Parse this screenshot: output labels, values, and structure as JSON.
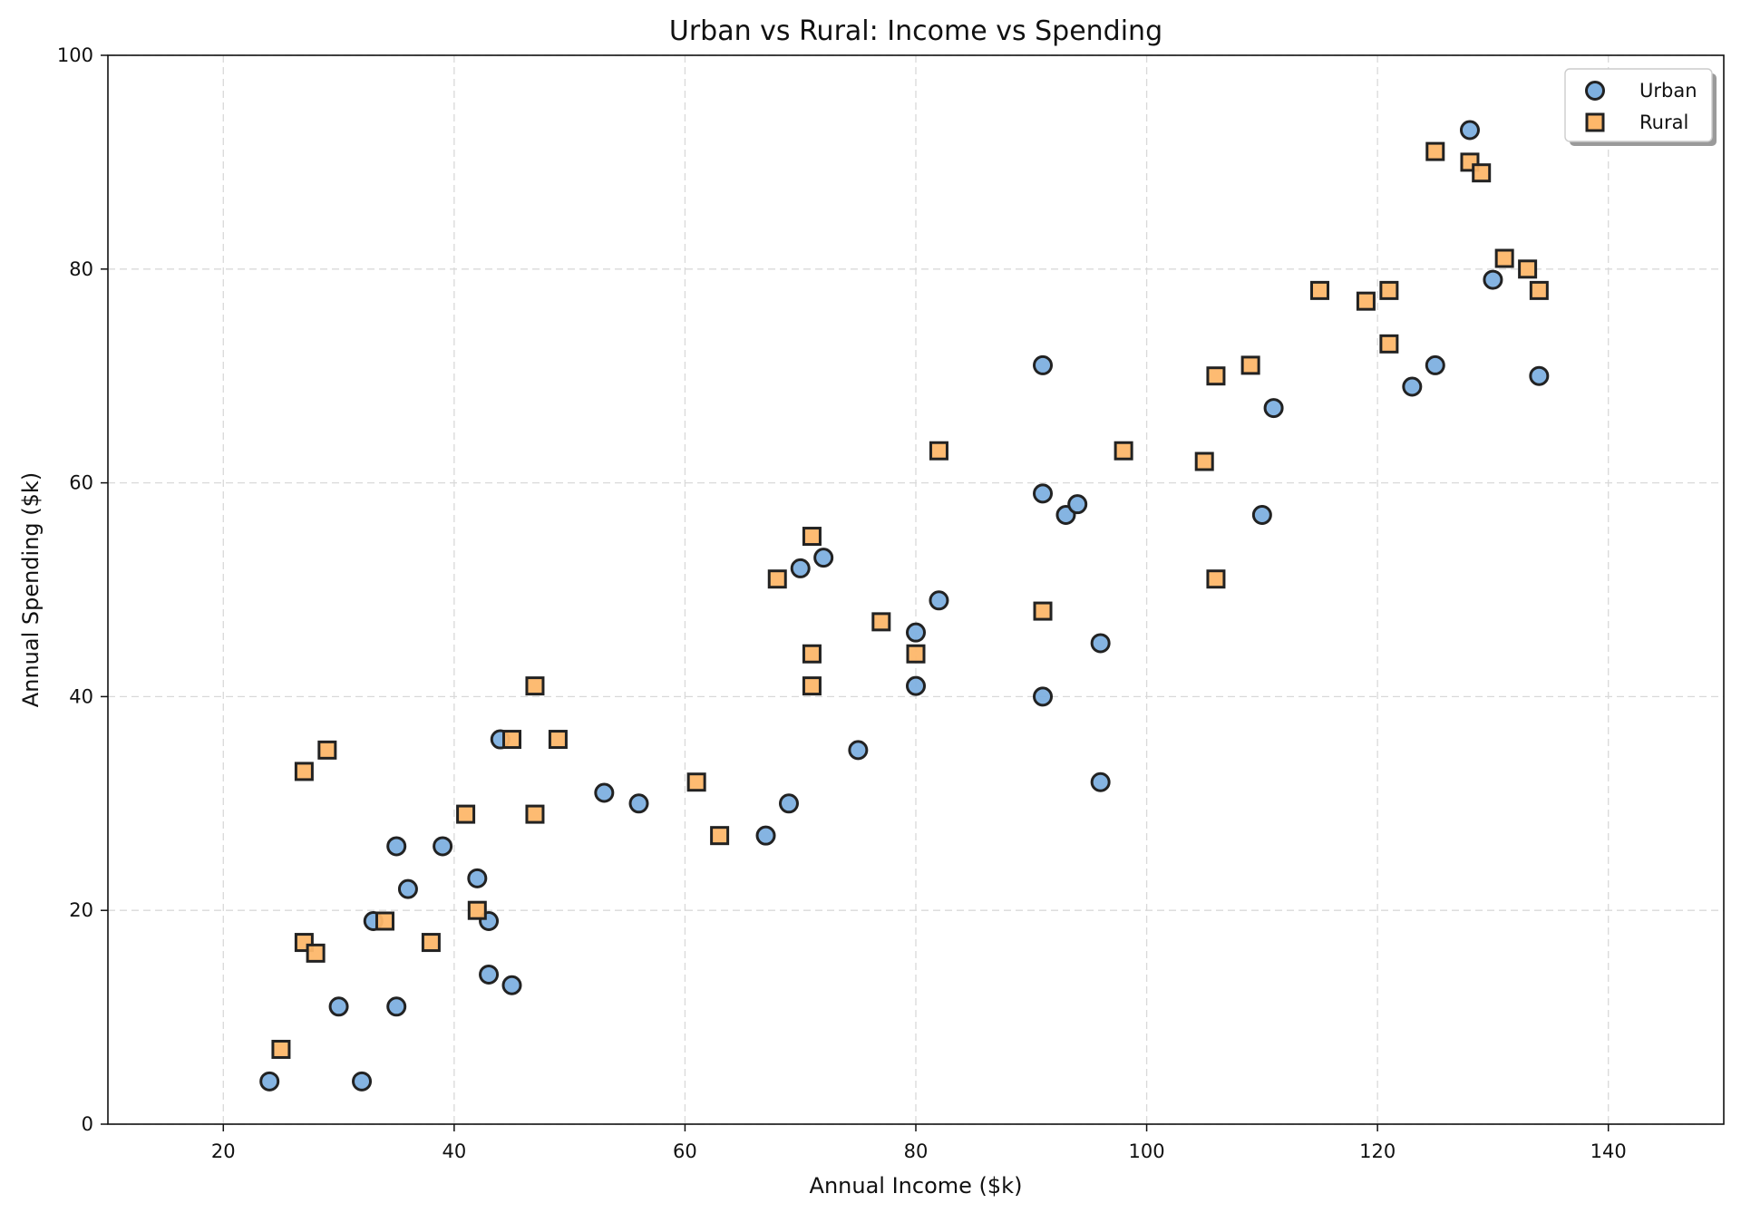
{
  "chart_data": {
    "type": "scatter",
    "title": "Urban vs Rural: Income vs Spending",
    "xlabel": "Annual Income ($k)",
    "ylabel": "Annual Spending ($k)",
    "xlim": [
      10,
      150
    ],
    "ylim": [
      0,
      100
    ],
    "xticks": [
      20,
      40,
      60,
      80,
      100,
      120,
      140
    ],
    "yticks": [
      0,
      20,
      40,
      60,
      80,
      100
    ],
    "grid": true,
    "legend_position": "top-right",
    "series": [
      {
        "name": "Urban",
        "marker": "circle",
        "color": "#7EB0E0",
        "edge_color": "#222222",
        "points": [
          [
            24,
            4
          ],
          [
            32,
            4
          ],
          [
            30,
            11
          ],
          [
            35,
            11
          ],
          [
            45,
            13
          ],
          [
            43,
            14
          ],
          [
            33,
            19
          ],
          [
            43,
            19
          ],
          [
            36,
            22
          ],
          [
            42,
            23
          ],
          [
            35,
            26
          ],
          [
            39,
            26
          ],
          [
            44,
            36
          ],
          [
            53,
            31
          ],
          [
            56,
            30
          ],
          [
            67,
            27
          ],
          [
            69,
            30
          ],
          [
            75,
            35
          ],
          [
            70,
            52
          ],
          [
            72,
            53
          ],
          [
            82,
            49
          ],
          [
            80,
            46
          ],
          [
            80,
            41
          ],
          [
            91,
            40
          ],
          [
            96,
            32
          ],
          [
            96,
            45
          ],
          [
            91,
            59
          ],
          [
            93,
            57
          ],
          [
            94,
            58
          ],
          [
            91,
            71
          ],
          [
            110,
            57
          ],
          [
            111,
            67
          ],
          [
            123,
            69
          ],
          [
            125,
            71
          ],
          [
            134,
            70
          ],
          [
            130,
            79
          ],
          [
            128,
            93
          ]
        ]
      },
      {
        "name": "Rural",
        "marker": "square",
        "color": "#FDB76A",
        "edge_color": "#222222",
        "points": [
          [
            25,
            7
          ],
          [
            27,
            17
          ],
          [
            28,
            16
          ],
          [
            34,
            19
          ],
          [
            38,
            17
          ],
          [
            42,
            20
          ],
          [
            27,
            33
          ],
          [
            29,
            35
          ],
          [
            41,
            29
          ],
          [
            45,
            36
          ],
          [
            47,
            41
          ],
          [
            47,
            29
          ],
          [
            49,
            36
          ],
          [
            61,
            32
          ],
          [
            63,
            27
          ],
          [
            68,
            51
          ],
          [
            71,
            55
          ],
          [
            71,
            44
          ],
          [
            71,
            41
          ],
          [
            77,
            47
          ],
          [
            80,
            44
          ],
          [
            82,
            63
          ],
          [
            91,
            48
          ],
          [
            98,
            63
          ],
          [
            105,
            62
          ],
          [
            106,
            70
          ],
          [
            106,
            51
          ],
          [
            109,
            71
          ],
          [
            115,
            78
          ],
          [
            119,
            77
          ],
          [
            121,
            78
          ],
          [
            121,
            73
          ],
          [
            125,
            91
          ],
          [
            128,
            90
          ],
          [
            129,
            89
          ],
          [
            131,
            81
          ],
          [
            133,
            80
          ],
          [
            134,
            78
          ]
        ]
      }
    ]
  }
}
